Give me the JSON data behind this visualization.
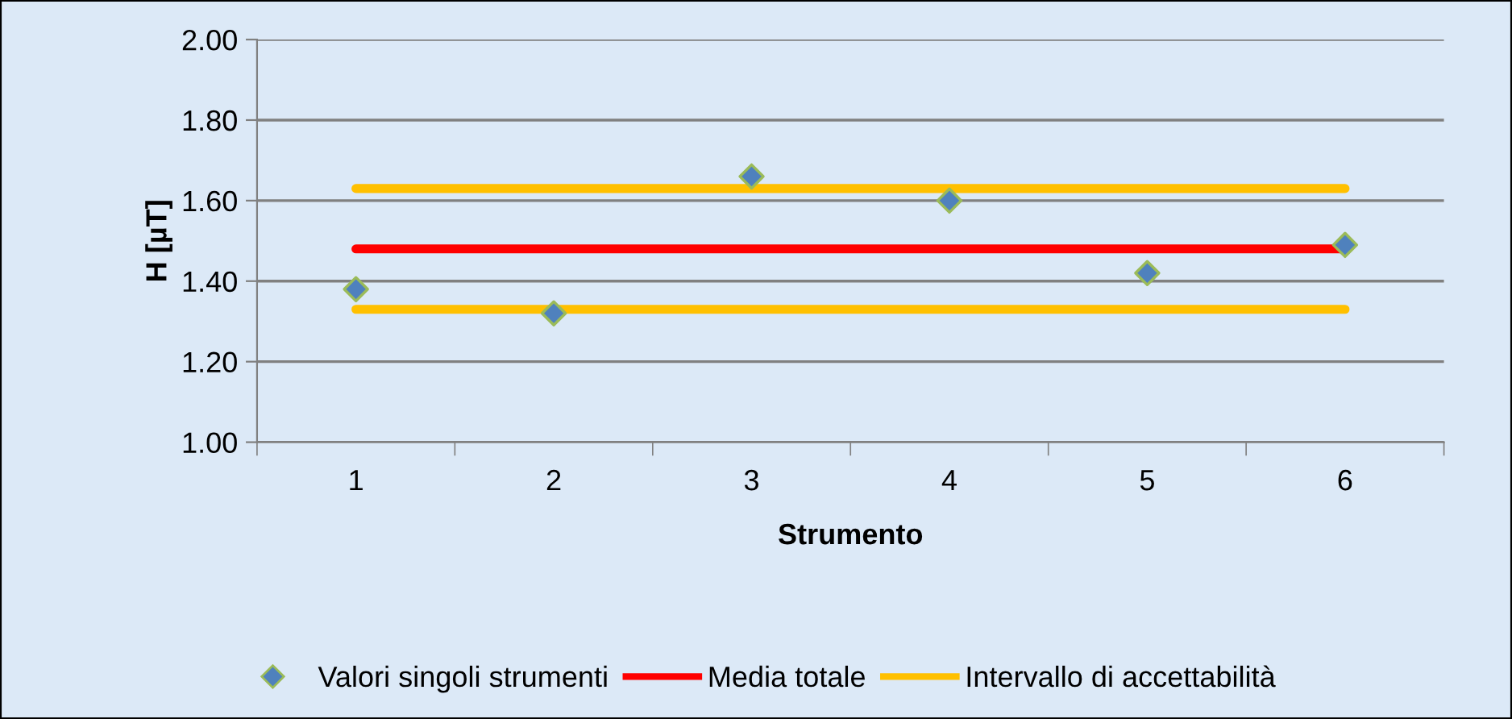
{
  "chart_data": {
    "type": "scatter",
    "xlabel": "Strumento",
    "ylabel": "H [µT]",
    "categories": [
      "1",
      "2",
      "3",
      "4",
      "5",
      "6"
    ],
    "series": [
      {
        "name": "Valori singoli strumenti",
        "color": "#4f81bd",
        "marker": "diamond",
        "values": [
          1.38,
          1.32,
          1.66,
          1.6,
          1.42,
          1.49
        ]
      },
      {
        "name": "Media totale",
        "type": "line",
        "color": "#ff0000",
        "marker": "none",
        "values": [
          1.48,
          1.48,
          1.48,
          1.48,
          1.48,
          1.48
        ]
      },
      {
        "name": "Intervallo di accettabilità",
        "type": "line",
        "color": "#ffc000",
        "marker": "none",
        "values": [
          1.63,
          1.63,
          1.63,
          1.63,
          1.63,
          1.63
        ]
      },
      {
        "type": "line",
        "color": "#ffc000",
        "marker": "none",
        "values": [
          1.33,
          1.33,
          1.33,
          1.33,
          1.33,
          1.33
        ]
      }
    ],
    "ylim": [
      1.0,
      2.0
    ],
    "yticks": [
      {
        "value": 1.0,
        "label": "1.00"
      },
      {
        "value": 1.2,
        "label": "1.20"
      },
      {
        "value": 1.4,
        "label": "1.40"
      },
      {
        "value": 1.6,
        "label": "1.60"
      },
      {
        "value": 1.8,
        "label": "1.80"
      },
      {
        "value": 2.0,
        "label": "2.00"
      }
    ],
    "grid": "y",
    "legend": "bottom"
  }
}
